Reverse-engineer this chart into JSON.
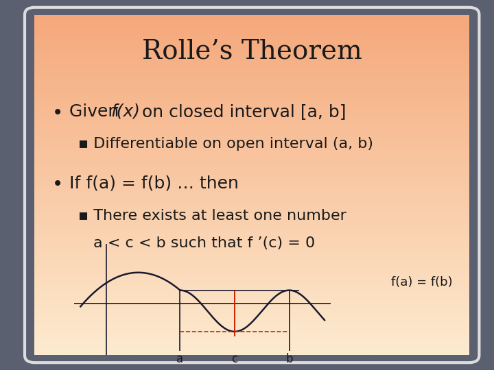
{
  "title": "Rolle’s Theorem",
  "bullet1": "Given ",
  "bullet1_italic": "f(x)",
  "bullet1_rest": " on closed interval [a, b]",
  "sub1": "Differentiable on open interval (a, b)",
  "bullet2": "If f(a) = f(b) … then",
  "sub2_line1": "There exists at least one number",
  "sub2_line2": "a < c < b such that f ’(c) = 0",
  "annotation": "f(a) = f(b)",
  "bg_color_top": "#FDEBD0",
  "bg_color_bottom": "#F5A87B",
  "curve_color": "#1a1a2e",
  "line_color": "#1a1a2e",
  "red_color": "#CC2200",
  "text_color": "#1a1a1a",
  "title_fontsize": 28,
  "body_fontsize": 18,
  "sub_fontsize": 16,
  "annot_fontsize": 13
}
